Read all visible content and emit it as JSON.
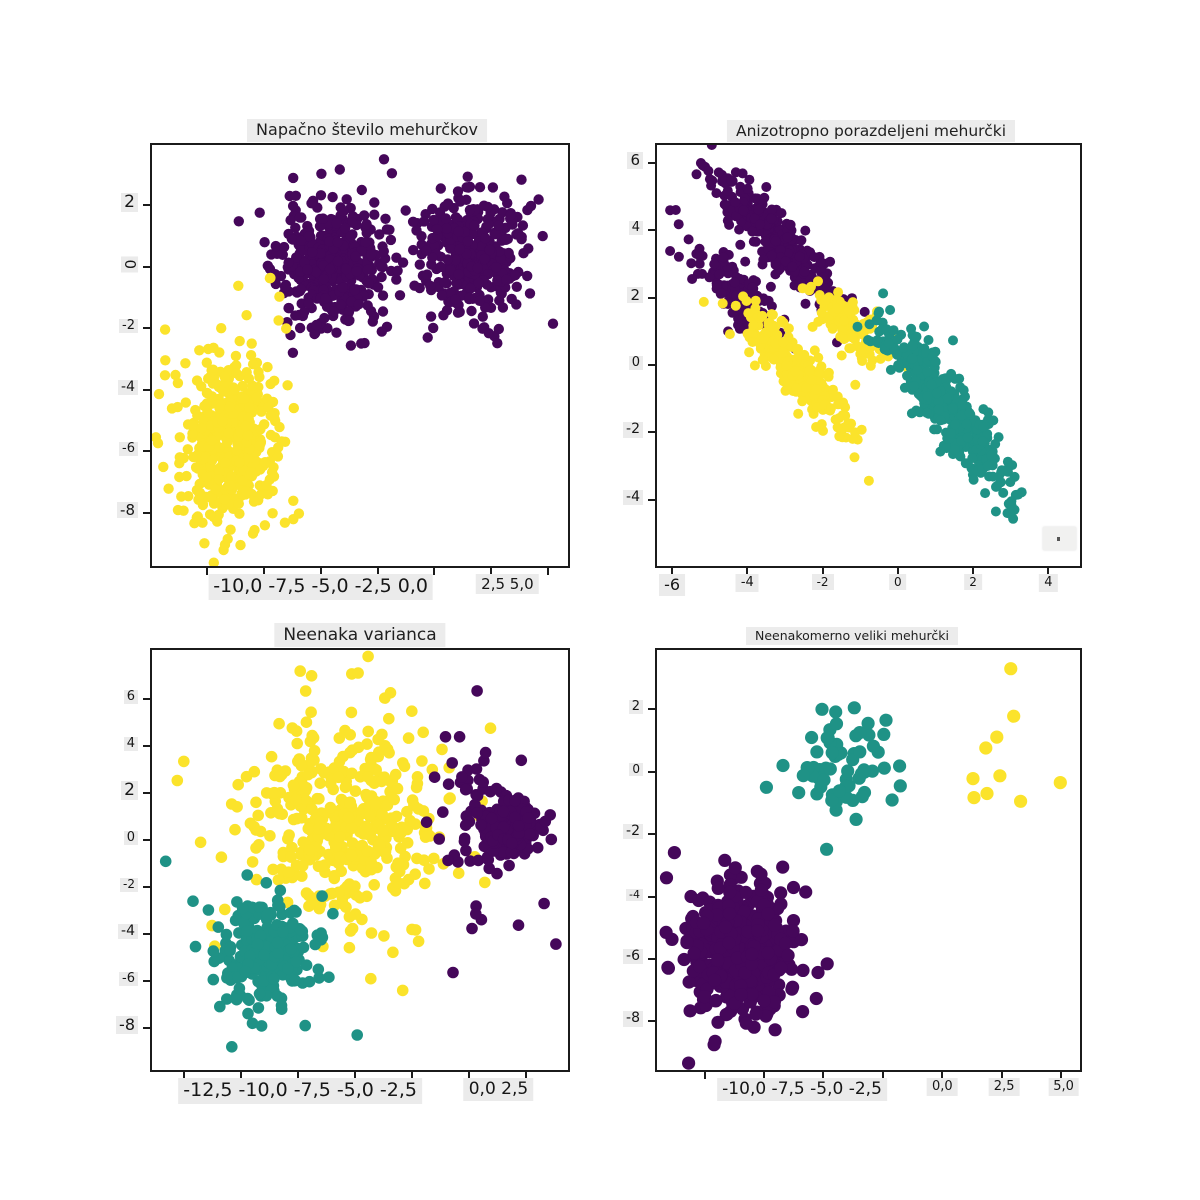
{
  "figure": {
    "background": "#ffffff",
    "axis_color": "#1b1b1b",
    "label_background": "#ebebeb"
  },
  "colors": {
    "purple": "#45075a",
    "teal": "#1f9286",
    "yellow": "#fbe32b"
  },
  "chart_data": [
    {
      "type": "scatter",
      "title": "Napačno število mehurčkov",
      "xlim": [
        -12.4,
        5.86
      ],
      "ylim": [
        -9.74,
        3.97
      ],
      "grid": false,
      "legend": "none",
      "marker_px": 5.2,
      "xticks": [
        -10,
        -7.5,
        -5,
        -2.5,
        0,
        2.5,
        5
      ],
      "xlabel_groups": [
        {
          "text": "-10,0 -7,5 -5,0 -2,5 0,0",
          "value": -5.0,
          "fs": 19
        },
        {
          "text": "2,5 5,0",
          "value": 3.2,
          "fs": 15
        }
      ],
      "yticks": [
        {
          "v": 2,
          "label": "2",
          "fs": 17
        },
        {
          "v": 0,
          "label": "0",
          "fs": 15,
          "rot": 90
        },
        {
          "v": -2,
          "label": "-2",
          "fs": 13
        },
        {
          "v": -4,
          "label": "-4",
          "fs": 14
        },
        {
          "v": -6,
          "label": "-6",
          "fs": 13
        },
        {
          "v": -8,
          "label": "-8",
          "fs": 15
        }
      ],
      "clusters": [
        {
          "color": "purple",
          "n": 430,
          "cx": -4.6,
          "cy": 0.05,
          "sx": 1.15,
          "sy": 1.0,
          "seed": 11
        },
        {
          "color": "purple",
          "n": 380,
          "cx": 1.65,
          "cy": 0.35,
          "sx": 1.05,
          "sy": 0.95,
          "seed": 12
        },
        {
          "color": "yellow",
          "n": 460,
          "cx": -9.15,
          "cy": -5.75,
          "sx": 1.15,
          "sy": 1.4,
          "seed": 13
        },
        {
          "color": "yellow",
          "n": 7,
          "cx": -7.4,
          "cy": -1.15,
          "sx": 0.75,
          "sy": 0.6,
          "seed": 14
        }
      ],
      "extra_points": [
        [
          -10.1,
          -9.0,
          "yellow"
        ],
        [
          5.2,
          -1.85,
          "purple"
        ],
        [
          -6.2,
          2.9,
          "purple"
        ],
        [
          -0.3,
          -2.3,
          "purple"
        ]
      ]
    },
    {
      "type": "scatter",
      "title": "Anizotropno porazdeljeni mehurčki",
      "xlim": [
        -6.4,
        4.84
      ],
      "ylim": [
        -5.97,
        6.53
      ],
      "grid": false,
      "legend": "none",
      "marker_px": 5.0,
      "xticks": [
        -6,
        -4,
        -2,
        0,
        2,
        4
      ],
      "xlabel_groups": [
        {
          "text": "-6",
          "value": -6,
          "fs": 16
        },
        {
          "text": "-4",
          "value": -4,
          "fs": 13
        },
        {
          "text": "-2",
          "value": -2,
          "fs": 12
        },
        {
          "text": "0",
          "value": 0,
          "fs": 12
        },
        {
          "text": "2",
          "value": 2,
          "fs": 12
        },
        {
          "text": "4",
          "value": 4,
          "fs": 13
        }
      ],
      "yticks": [
        {
          "v": 6,
          "label": "6",
          "fs": 15
        },
        {
          "v": 4,
          "label": "4",
          "fs": 13
        },
        {
          "v": 2,
          "label": "2",
          "fs": 15
        },
        {
          "v": 0,
          "label": "0",
          "fs": 13
        },
        {
          "v": -2,
          "label": "-2",
          "fs": 14
        },
        {
          "v": -4,
          "label": "-4",
          "fs": 14
        }
      ],
      "clusters": [
        {
          "color": "purple",
          "n": 330,
          "cx": -3.2,
          "cy": 3.7,
          "smain": 1.35,
          "scross": 0.3,
          "angle": -50,
          "seed": 21
        },
        {
          "color": "purple",
          "n": 150,
          "cx": -4.3,
          "cy": 2.2,
          "smain": 0.95,
          "scross": 0.28,
          "angle": -50,
          "seed": 22
        },
        {
          "color": "yellow",
          "n": 260,
          "cx": -2.8,
          "cy": -0.05,
          "smain": 1.15,
          "scross": 0.3,
          "angle": -52,
          "seed": 23
        },
        {
          "color": "yellow",
          "n": 120,
          "cx": -1.4,
          "cy": 1.25,
          "smain": 0.75,
          "scross": 0.27,
          "angle": -48,
          "seed": 24
        },
        {
          "color": "teal",
          "n": 400,
          "cx": 1.3,
          "cy": -1.3,
          "smain": 1.45,
          "scross": 0.33,
          "angle": -57,
          "seed": 25
        }
      ],
      "extra_points": [
        [
          -5.9,
          4.6,
          "purple"
        ],
        [
          2.8,
          -3.8,
          "teal"
        ],
        [
          3.1,
          -4.3,
          "teal"
        ]
      ]
    },
    {
      "type": "scatter",
      "title": "Neenaka varianca",
      "xlim": [
        -13.9,
        4.35
      ],
      "ylim": [
        -9.79,
        8.1
      ],
      "grid": false,
      "legend": "none",
      "marker_px": 5.8,
      "xticks": [
        -12.5,
        -10,
        -7.5,
        -5,
        -2.5,
        0,
        2.5
      ],
      "xlabel_groups": [
        {
          "text": "-12,5 -10,0 -7,5 -5,0 -2,5",
          "value": -7.4,
          "fs": 19
        },
        {
          "text": "0,0 2,5",
          "value": 1.3,
          "fs": 17
        }
      ],
      "yticks": [
        {
          "v": 6,
          "label": "6",
          "fs": 13
        },
        {
          "v": 4,
          "label": "4",
          "fs": 13
        },
        {
          "v": 2,
          "label": "2",
          "fs": 17
        },
        {
          "v": 0,
          "label": "0",
          "fs": 13
        },
        {
          "v": -2,
          "label": "-2",
          "fs": 12
        },
        {
          "v": -4,
          "label": "-4",
          "fs": 14
        },
        {
          "v": -6,
          "label": "-6",
          "fs": 13
        },
        {
          "v": -8,
          "label": "-8",
          "fs": 16
        }
      ],
      "clusters": [
        {
          "color": "yellow",
          "n": 430,
          "cx": -5.2,
          "cy": 0.8,
          "sx": 2.3,
          "sy": 2.25,
          "seed": 31
        },
        {
          "color": "purple",
          "n": 55,
          "cx": 0.3,
          "cy": 0.9,
          "sx": 0.95,
          "sy": 2.3,
          "seed": 32
        },
        {
          "color": "purple",
          "n": 210,
          "cx": 1.9,
          "cy": 0.45,
          "sx": 0.6,
          "sy": 0.55,
          "seed": 33
        },
        {
          "color": "teal",
          "n": 290,
          "cx": -9.0,
          "cy": -4.9,
          "sx": 1.0,
          "sy": 1.05,
          "seed": 34
        }
      ],
      "extra_points": [
        [
          -7.4,
          7.2,
          "yellow"
        ],
        [
          -6.9,
          7.0,
          "yellow"
        ],
        [
          -13.3,
          -0.9,
          "teal"
        ],
        [
          -12.1,
          -2.6,
          "teal"
        ],
        [
          -10.4,
          -8.8,
          "teal"
        ],
        [
          -4.9,
          -8.3,
          "teal"
        ],
        [
          -2.9,
          -6.4,
          "yellow"
        ],
        [
          -4.3,
          -5.9,
          "yellow"
        ],
        [
          3.3,
          -2.7,
          "purple"
        ],
        [
          2.3,
          3.4,
          "purple"
        ]
      ]
    },
    {
      "type": "scatter",
      "title": "Neenakomerno veliki mehurčki",
      "xlim": [
        -12.0,
        5.79
      ],
      "ylim": [
        -9.56,
        3.9
      ],
      "grid": false,
      "legend": "none",
      "marker_px": 6.6,
      "xticks": [
        -10,
        -7.5,
        -5,
        -2.5,
        0,
        2.5,
        5
      ],
      "xlabel_groups": [
        {
          "text": "-10,0 -7,5 -5,0 -2,5",
          "value": -5.9,
          "fs": 17
        },
        {
          "text": "0,0",
          "value": 0,
          "fs": 13
        },
        {
          "text": "2,5",
          "value": 2.6,
          "fs": 13
        },
        {
          "text": "5,0",
          "value": 5.1,
          "fs": 13
        }
      ],
      "yticks": [
        {
          "v": 2,
          "label": "2",
          "fs": 13
        },
        {
          "v": 0,
          "label": "0",
          "fs": 12
        },
        {
          "v": -2,
          "label": "-2",
          "fs": 14
        },
        {
          "v": -4,
          "label": "-4",
          "fs": 11
        },
        {
          "v": -6,
          "label": "-6",
          "fs": 14
        },
        {
          "v": -8,
          "label": "-8",
          "fs": 14
        }
      ],
      "clusters": [
        {
          "color": "purple",
          "n": 470,
          "cx": -8.45,
          "cy": -5.65,
          "sx": 1.1,
          "sy": 1.1,
          "seed": 41
        },
        {
          "color": "teal",
          "n": 66,
          "cx": -4.2,
          "cy": 0.3,
          "sx": 1.0,
          "sy": 0.85,
          "seed": 42
        }
      ],
      "extra_points": [
        [
          2.88,
          3.3,
          "yellow"
        ],
        [
          3.0,
          1.78,
          "yellow"
        ],
        [
          2.29,
          1.11,
          "yellow"
        ],
        [
          1.83,
          0.76,
          "yellow"
        ],
        [
          1.29,
          -0.22,
          "yellow"
        ],
        [
          2.42,
          -0.13,
          "yellow"
        ],
        [
          1.33,
          -0.83,
          "yellow"
        ],
        [
          1.88,
          -0.7,
          "yellow"
        ],
        [
          3.29,
          -0.95,
          "yellow"
        ],
        [
          4.96,
          -0.35,
          "yellow"
        ],
        [
          -9.6,
          -8.75,
          "purple"
        ],
        [
          -11.6,
          -3.4,
          "purple"
        ],
        [
          -7.4,
          -0.5,
          "teal"
        ],
        [
          -6.7,
          0.2,
          "teal"
        ]
      ]
    }
  ]
}
